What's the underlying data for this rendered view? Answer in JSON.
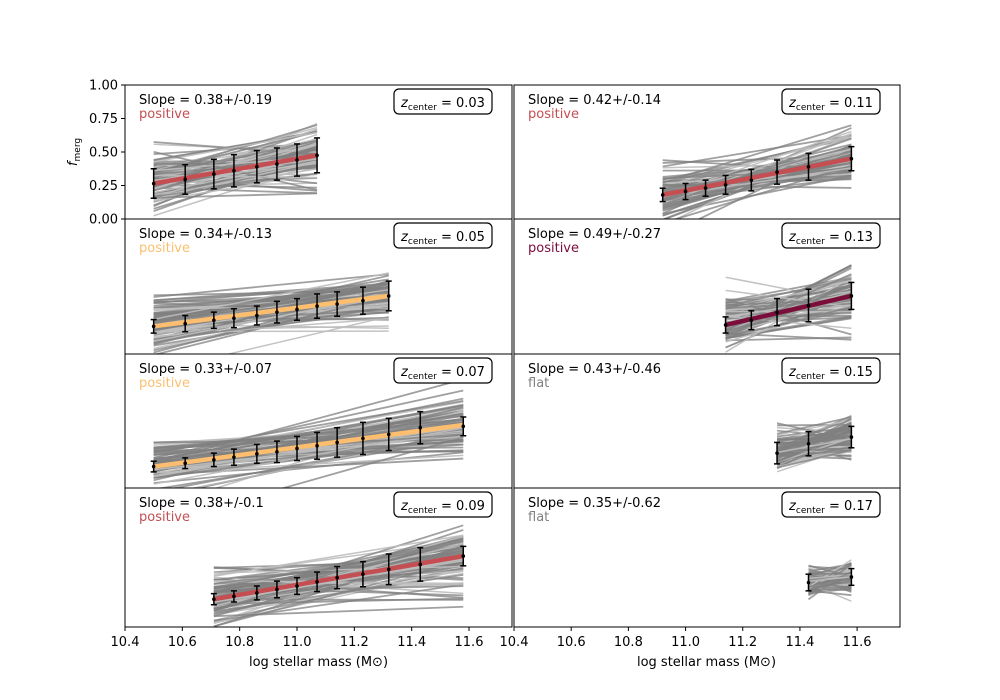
{
  "chart_data": {
    "type": "line",
    "xlabel": "log stellar mass (M⊙)",
    "ylabel": "f_merg",
    "ylabel_main": "f",
    "ylabel_sub": "merg",
    "xlim": [
      10.4,
      11.75
    ],
    "ylim": [
      0.0,
      1.0
    ],
    "xticks": [
      "10.4",
      "10.6",
      "10.8",
      "11.0",
      "11.2",
      "11.4",
      "11.6"
    ],
    "xtick_values": [
      10.4,
      10.6,
      10.8,
      11.0,
      11.2,
      11.4,
      11.6
    ],
    "yticks": [
      "0.00",
      "0.25",
      "0.50",
      "0.75",
      "1.00"
    ],
    "ytick_values": [
      0.0,
      0.25,
      0.5,
      0.75,
      1.0
    ],
    "z_label_main": "z",
    "z_label_sub": "center",
    "colors": {
      "positive_red": "#c44e52",
      "positive_orange": "#fdbf6f",
      "positive_dark": "#7b0d3a",
      "flat": "#808080",
      "mc": "#808080",
      "mc_light": "#bdbdbd"
    },
    "panels": [
      {
        "slope_text": "Slope = 0.38+/-0.19",
        "trend": "positive",
        "trend_color": "#c44e52",
        "z_text": "= 0.03",
        "fit": {
          "x0": 10.5,
          "y0": 0.265,
          "x1": 11.07,
          "y1": 0.475,
          "color": "#c44e52"
        },
        "points": [
          [
            10.5,
            0.265,
            0.11
          ],
          [
            10.61,
            0.295,
            0.11
          ],
          [
            10.71,
            0.335,
            0.11
          ],
          [
            10.78,
            0.36,
            0.12
          ],
          [
            10.86,
            0.39,
            0.12
          ],
          [
            10.93,
            0.41,
            0.12
          ],
          [
            11.0,
            0.44,
            0.12
          ],
          [
            11.07,
            0.475,
            0.13
          ]
        ]
      },
      {
        "slope_text": "Slope = 0.42+/-0.14",
        "trend": "positive",
        "trend_color": "#c44e52",
        "z_text": "= 0.11",
        "fit": {
          "x0": 10.92,
          "y0": 0.18,
          "x1": 11.58,
          "y1": 0.45,
          "color": "#c44e52"
        },
        "points": [
          [
            10.92,
            0.18,
            0.05
          ],
          [
            11.0,
            0.205,
            0.06
          ],
          [
            11.07,
            0.23,
            0.06
          ],
          [
            11.14,
            0.255,
            0.07
          ],
          [
            11.23,
            0.29,
            0.08
          ],
          [
            11.32,
            0.35,
            0.09
          ],
          [
            11.43,
            0.39,
            0.1
          ],
          [
            11.58,
            0.45,
            0.09
          ]
        ]
      },
      {
        "slope_text": "Slope = 0.34+/-0.13",
        "trend": "positive",
        "trend_color": "#fdbf6f",
        "z_text": "= 0.05",
        "fit": {
          "x0": 10.5,
          "y0": 0.205,
          "x1": 11.32,
          "y1": 0.43,
          "color": "#fdbf6f"
        },
        "points": [
          [
            10.5,
            0.205,
            0.05
          ],
          [
            10.61,
            0.225,
            0.06
          ],
          [
            10.71,
            0.25,
            0.06
          ],
          [
            10.78,
            0.265,
            0.07
          ],
          [
            10.86,
            0.285,
            0.07
          ],
          [
            10.93,
            0.31,
            0.08
          ],
          [
            11.0,
            0.33,
            0.08
          ],
          [
            11.07,
            0.355,
            0.09
          ],
          [
            11.14,
            0.37,
            0.09
          ],
          [
            11.23,
            0.395,
            0.1
          ],
          [
            11.32,
            0.43,
            0.11
          ]
        ]
      },
      {
        "slope_text": "Slope = 0.49+/-0.27",
        "trend": "positive",
        "trend_color": "#7b0d3a",
        "z_text": "= 0.13",
        "fit": {
          "x0": 11.14,
          "y0": 0.215,
          "x1": 11.58,
          "y1": 0.43,
          "color": "#7b0d3a"
        },
        "points": [
          [
            11.14,
            0.215,
            0.06
          ],
          [
            11.23,
            0.25,
            0.07
          ],
          [
            11.32,
            0.31,
            0.1
          ],
          [
            11.43,
            0.36,
            0.12
          ],
          [
            11.58,
            0.43,
            0.1
          ]
        ]
      },
      {
        "slope_text": "Slope = 0.33+/-0.07",
        "trend": "positive",
        "trend_color": "#fdbf6f",
        "z_text": "= 0.07",
        "fit": {
          "x0": 10.5,
          "y0": 0.16,
          "x1": 11.58,
          "y1": 0.47,
          "color": "#fdbf6f"
        },
        "points": [
          [
            10.5,
            0.16,
            0.04
          ],
          [
            10.61,
            0.185,
            0.04
          ],
          [
            10.71,
            0.21,
            0.05
          ],
          [
            10.78,
            0.23,
            0.06
          ],
          [
            10.86,
            0.255,
            0.07
          ],
          [
            10.93,
            0.27,
            0.08
          ],
          [
            11.0,
            0.295,
            0.09
          ],
          [
            11.07,
            0.315,
            0.1
          ],
          [
            11.14,
            0.34,
            0.11
          ],
          [
            11.23,
            0.37,
            0.12
          ],
          [
            11.32,
            0.4,
            0.12
          ],
          [
            11.43,
            0.45,
            0.12
          ],
          [
            11.58,
            0.46,
            0.07
          ]
        ]
      },
      {
        "slope_text": "Slope = 0.43+/-0.46",
        "trend": "flat",
        "trend_color": "#808080",
        "z_text": "= 0.15",
        "fit": null,
        "points": [
          [
            11.32,
            0.26,
            0.08
          ],
          [
            11.43,
            0.33,
            0.09
          ],
          [
            11.58,
            0.38,
            0.08
          ]
        ]
      },
      {
        "slope_text": "Slope = 0.38+/-0.1",
        "trend": "positive",
        "trend_color": "#c44e52",
        "z_text": "= 0.09",
        "fit": {
          "x0": 10.71,
          "y0": 0.2,
          "x1": 11.58,
          "y1": 0.51,
          "color": "#c44e52"
        },
        "points": [
          [
            10.71,
            0.2,
            0.04
          ],
          [
            10.78,
            0.22,
            0.04
          ],
          [
            10.86,
            0.245,
            0.05
          ],
          [
            10.93,
            0.27,
            0.06
          ],
          [
            11.0,
            0.295,
            0.06
          ],
          [
            11.07,
            0.325,
            0.07
          ],
          [
            11.14,
            0.355,
            0.08
          ],
          [
            11.23,
            0.38,
            0.09
          ],
          [
            11.32,
            0.415,
            0.11
          ],
          [
            11.43,
            0.45,
            0.12
          ],
          [
            11.58,
            0.51,
            0.07
          ]
        ]
      },
      {
        "slope_text": "Slope = 0.35+/-0.62",
        "trend": "flat",
        "trend_color": "#808080",
        "z_text": "= 0.17",
        "fit": null,
        "points": [
          [
            11.43,
            0.32,
            0.06
          ],
          [
            11.58,
            0.36,
            0.06
          ]
        ]
      }
    ]
  }
}
